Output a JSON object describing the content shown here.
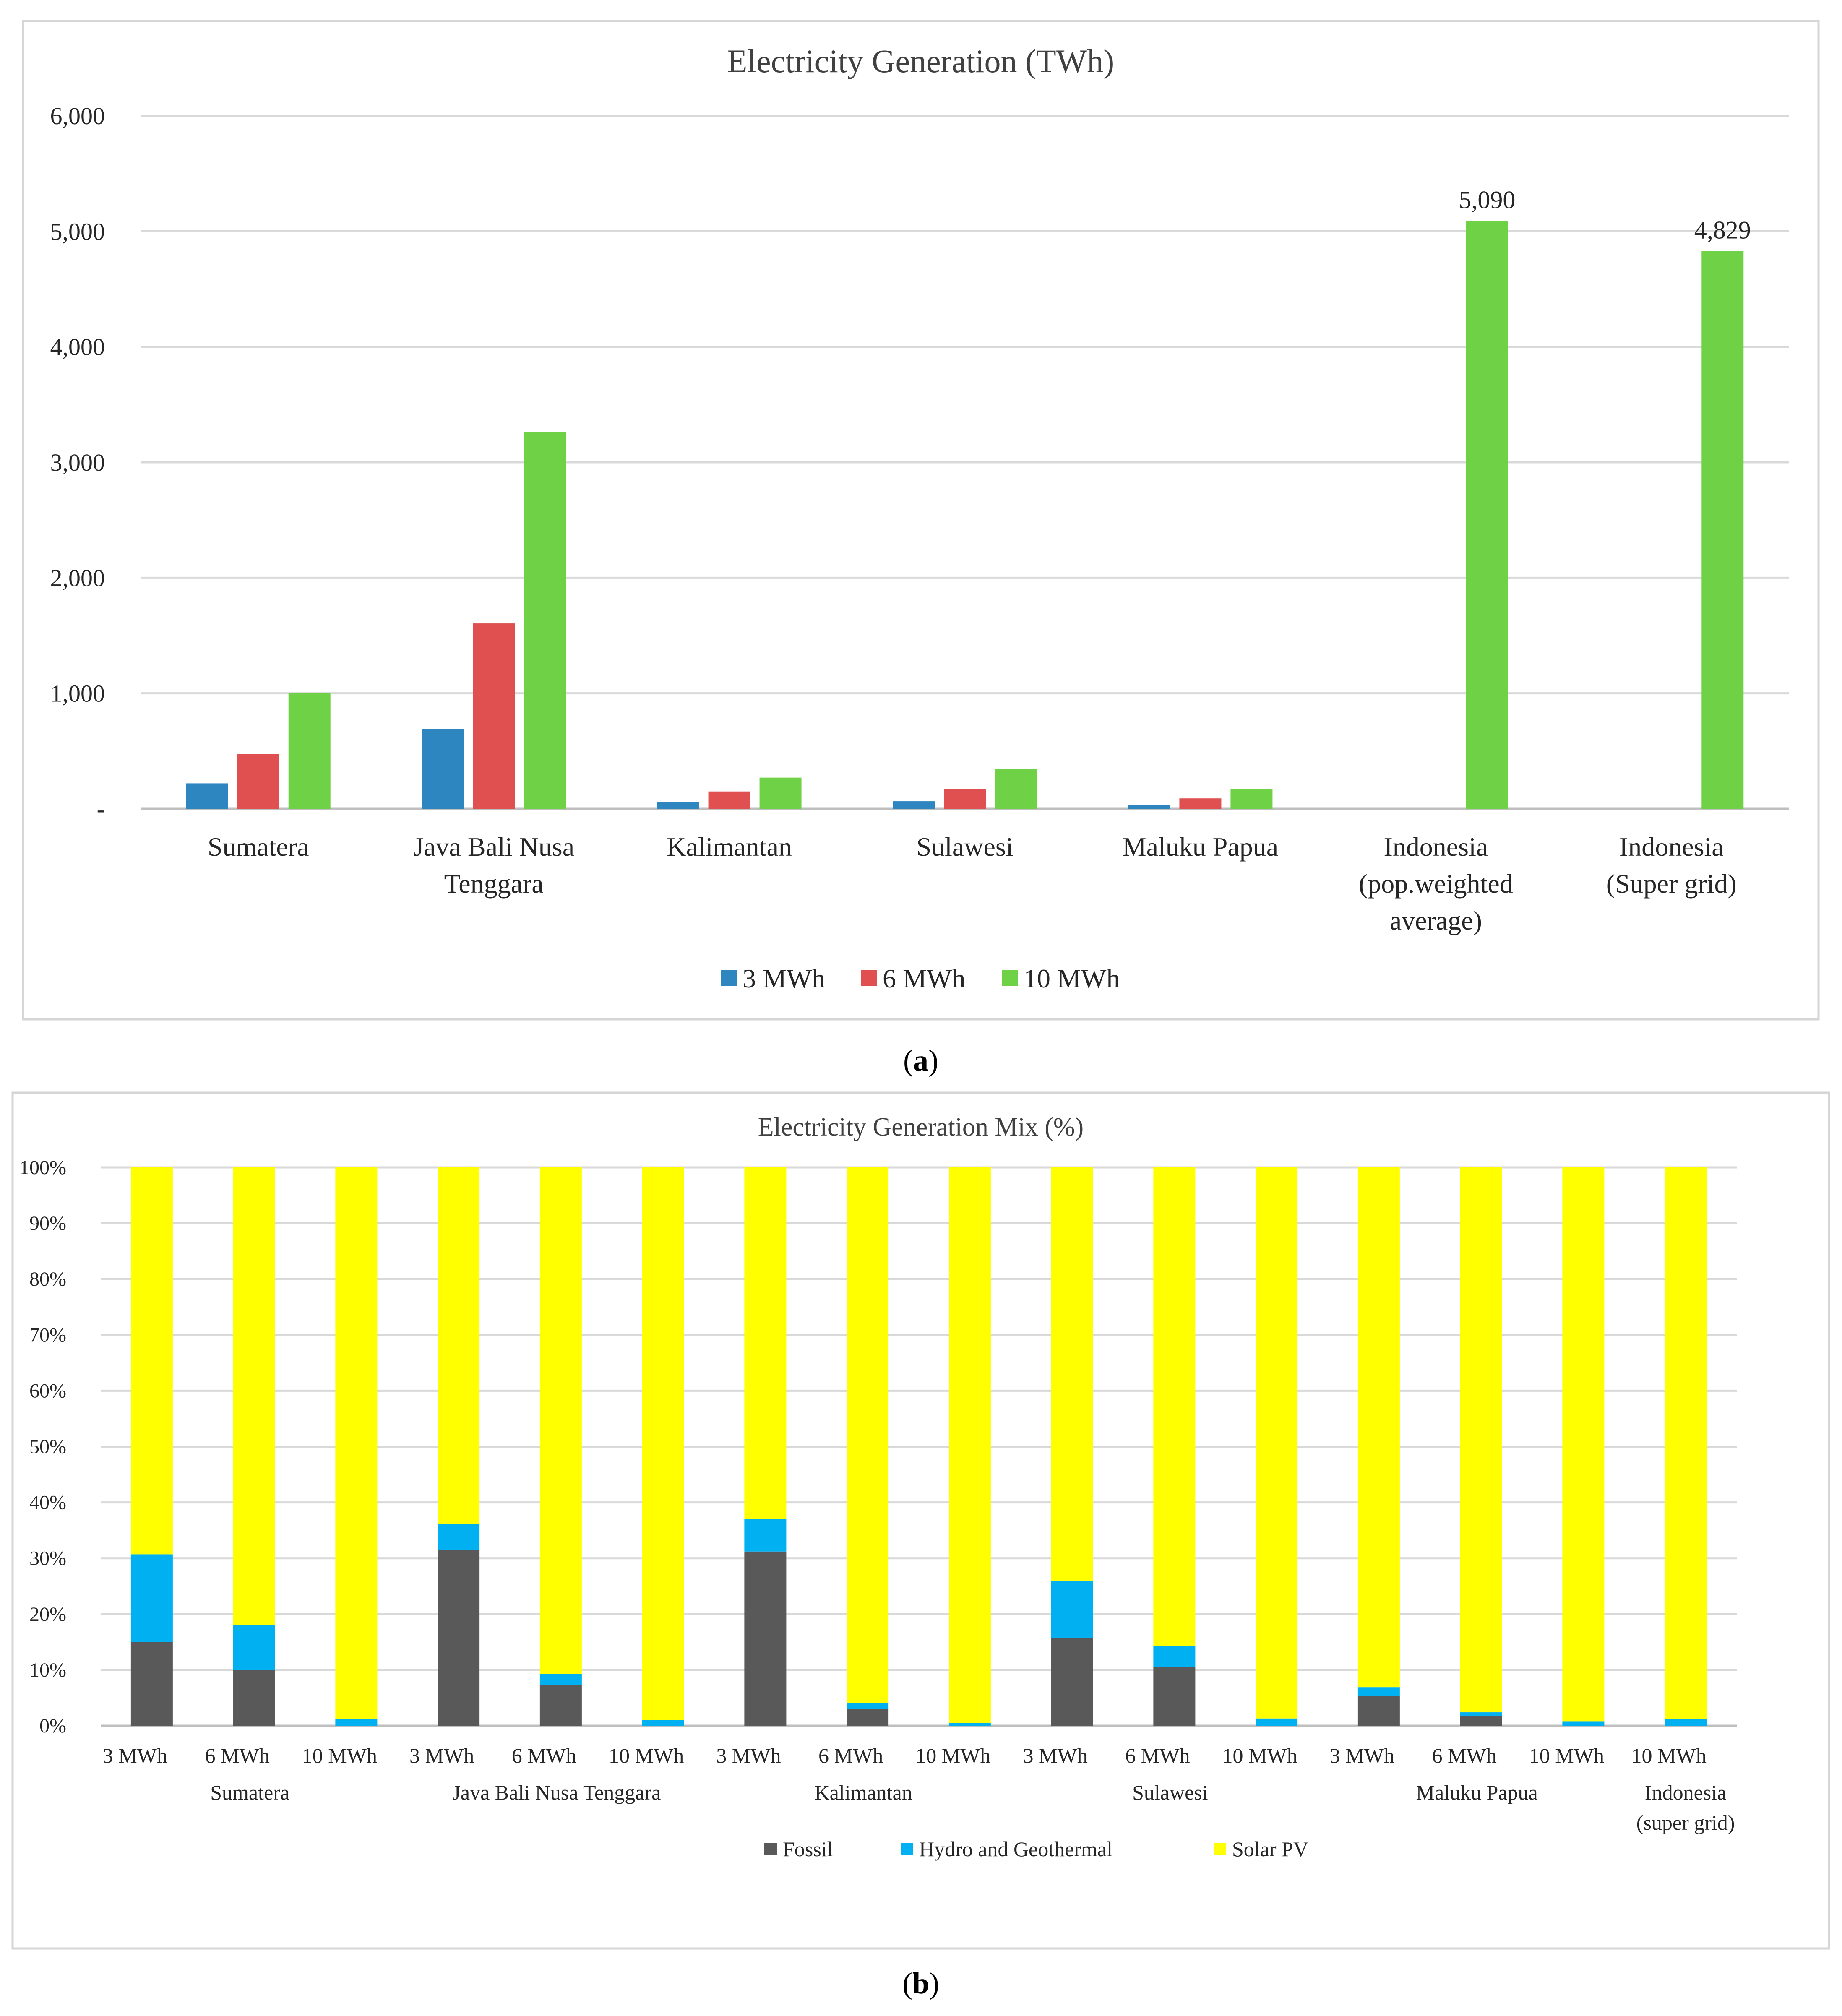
{
  "panels": {
    "a_label_open": "(",
    "a_label_letter": "a",
    "a_label_close": ")",
    "b_label_open": "(",
    "b_label_letter": "b",
    "b_label_close": ")"
  },
  "colors": {
    "s3": "#2e86c1",
    "s6": "#e05050",
    "s10": "#6fd146",
    "fossil": "#595959",
    "hydro": "#00b0f0",
    "solar": "#ffff00"
  },
  "chart_data": [
    {
      "type": "bar",
      "title": "Electricity Generation (TWh)",
      "xlabel": "",
      "ylabel": "",
      "ylim": [
        0,
        6000
      ],
      "yticks": [
        0,
        1000,
        2000,
        3000,
        4000,
        5000,
        6000
      ],
      "ytick_labels": [
        "-",
        "1,000",
        "2,000",
        "3,000",
        "4,000",
        "5,000",
        "6,000"
      ],
      "grid": true,
      "legend_position": "bottom",
      "categories": [
        [
          "Sumatera"
        ],
        [
          "Java Bali Nusa",
          "Tenggara"
        ],
        [
          "Kalimantan"
        ],
        [
          "Sulawesi"
        ],
        [
          "Maluku Papua"
        ],
        [
          "Indonesia",
          "(pop.weighted",
          "average)"
        ],
        [
          "Indonesia",
          "(Super grid)"
        ]
      ],
      "series": [
        {
          "name": "3 MWh",
          "color": "#2e86c1",
          "values": [
            220,
            690,
            55,
            65,
            35,
            null,
            null
          ]
        },
        {
          "name": "6 MWh",
          "color": "#e05050",
          "values": [
            475,
            1605,
            150,
            170,
            90,
            null,
            null
          ]
        },
        {
          "name": "10 MWh",
          "color": "#6fd146",
          "values": [
            1000,
            3260,
            270,
            345,
            170,
            5090,
            4829
          ]
        }
      ],
      "data_labels": [
        {
          "category_index": 5,
          "series_index": 2,
          "text": "5,090"
        },
        {
          "category_index": 6,
          "series_index": 2,
          "text": "4,829"
        }
      ]
    },
    {
      "type": "bar",
      "stacked": true,
      "title": "Electricity Generation Mix (%)",
      "xlabel": "",
      "ylabel": "",
      "ylim": [
        0,
        100
      ],
      "yticks": [
        0,
        10,
        20,
        30,
        40,
        50,
        60,
        70,
        80,
        90,
        100
      ],
      "ytick_labels": [
        "0%",
        "10%",
        "20%",
        "30%",
        "40%",
        "50%",
        "60%",
        "70%",
        "80%",
        "90%",
        "100%"
      ],
      "grid": true,
      "legend_position": "bottom",
      "categories": [
        "3 MWh",
        "6 MWh",
        "10 MWh",
        "3 MWh",
        "6 MWh",
        "10 MWh",
        "3 MWh",
        "6 MWh",
        "10 MWh",
        "3 MWh",
        "6 MWh",
        "10 MWh",
        "3 MWh",
        "6 MWh",
        "10 MWh",
        "10 MWh"
      ],
      "groups": [
        {
          "lines": [
            "Sumatera"
          ],
          "from": 0,
          "to": 2
        },
        {
          "lines": [
            "Java Bali Nusa Tenggara"
          ],
          "from": 3,
          "to": 5
        },
        {
          "lines": [
            "Kalimantan"
          ],
          "from": 6,
          "to": 8
        },
        {
          "lines": [
            "Sulawesi"
          ],
          "from": 9,
          "to": 11
        },
        {
          "lines": [
            "Maluku Papua"
          ],
          "from": 12,
          "to": 14
        },
        {
          "lines": [
            "Indonesia",
            "(super grid)"
          ],
          "from": 15,
          "to": 15
        }
      ],
      "series": [
        {
          "name": "Fossil",
          "color": "#595959",
          "values": [
            15,
            10,
            0,
            31.5,
            7.3,
            0,
            31.2,
            3,
            0,
            15.7,
            10.5,
            0,
            5.4,
            1.8,
            0,
            0
          ]
        },
        {
          "name": "Hydro and Geothermal",
          "color": "#00b0f0",
          "values": [
            15.7,
            8,
            1.2,
            4.6,
            2,
            1,
            5.8,
            1,
            0.5,
            10.3,
            3.8,
            1.3,
            1.5,
            0.6,
            0.8,
            1.2
          ]
        },
        {
          "name": "Solar PV",
          "color": "#ffff00",
          "values": [
            69.3,
            82,
            98.8,
            63.9,
            90.7,
            99,
            63,
            96,
            99.5,
            74,
            85.7,
            98.7,
            93.1,
            97.6,
            99.2,
            98.8
          ]
        }
      ]
    }
  ]
}
